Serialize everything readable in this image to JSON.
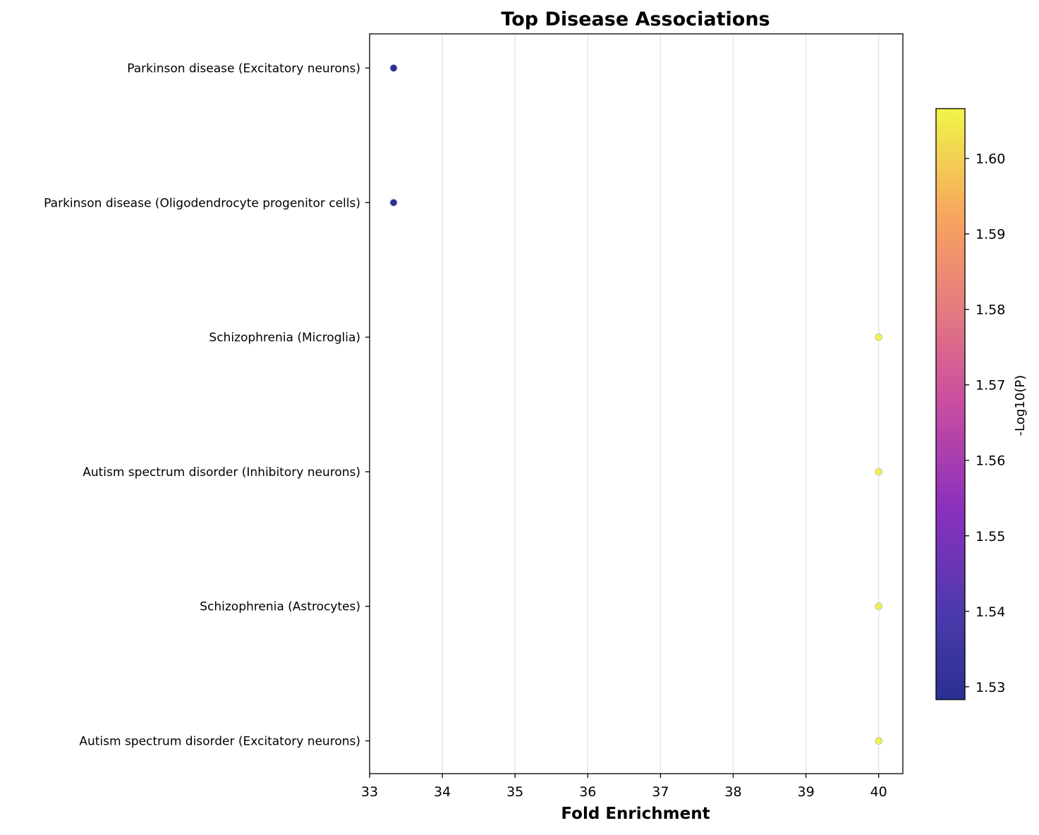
{
  "chart_data": {
    "type": "scatter",
    "title": "Top Disease Associations",
    "xlabel": "Fold Enrichment",
    "ylabel": "",
    "xlim": [
      33,
      40.33
    ],
    "x_ticks": [
      "33",
      "34",
      "35",
      "36",
      "37",
      "38",
      "39",
      "40"
    ],
    "categories": [
      "Parkinson disease (Excitatory neurons)",
      "Parkinson disease (Oligodendrocyte progenitor cells)",
      "Schizophrenia (Microglia)",
      "Autism spectrum disorder (Inhibitory neurons)",
      "Schizophrenia (Astrocytes)",
      "Autism spectrum disorder (Excitatory neurons)"
    ],
    "points": [
      {
        "category": "Parkinson disease (Excitatory neurons)",
        "x": 33.33,
        "color_value": 1.528
      },
      {
        "category": "Parkinson disease (Oligodendrocyte progenitor cells)",
        "x": 33.33,
        "color_value": 1.528
      },
      {
        "category": "Schizophrenia (Microglia)",
        "x": 40.0,
        "color_value": 1.606
      },
      {
        "category": "Autism spectrum disorder (Inhibitory neurons)",
        "x": 40.0,
        "color_value": 1.606
      },
      {
        "category": "Schizophrenia (Astrocytes)",
        "x": 40.0,
        "color_value": 1.606
      },
      {
        "category": "Autism spectrum disorder (Excitatory neurons)",
        "x": 40.0,
        "color_value": 1.606
      }
    ],
    "grid": "vertical",
    "colorbar": {
      "label": "-Log10(P)",
      "range": [
        1.5283,
        1.6066
      ],
      "ticks": [
        "1.53",
        "1.54",
        "1.55",
        "1.56",
        "1.57",
        "1.58",
        "1.59",
        "1.60"
      ],
      "colormap": "plasma"
    }
  }
}
